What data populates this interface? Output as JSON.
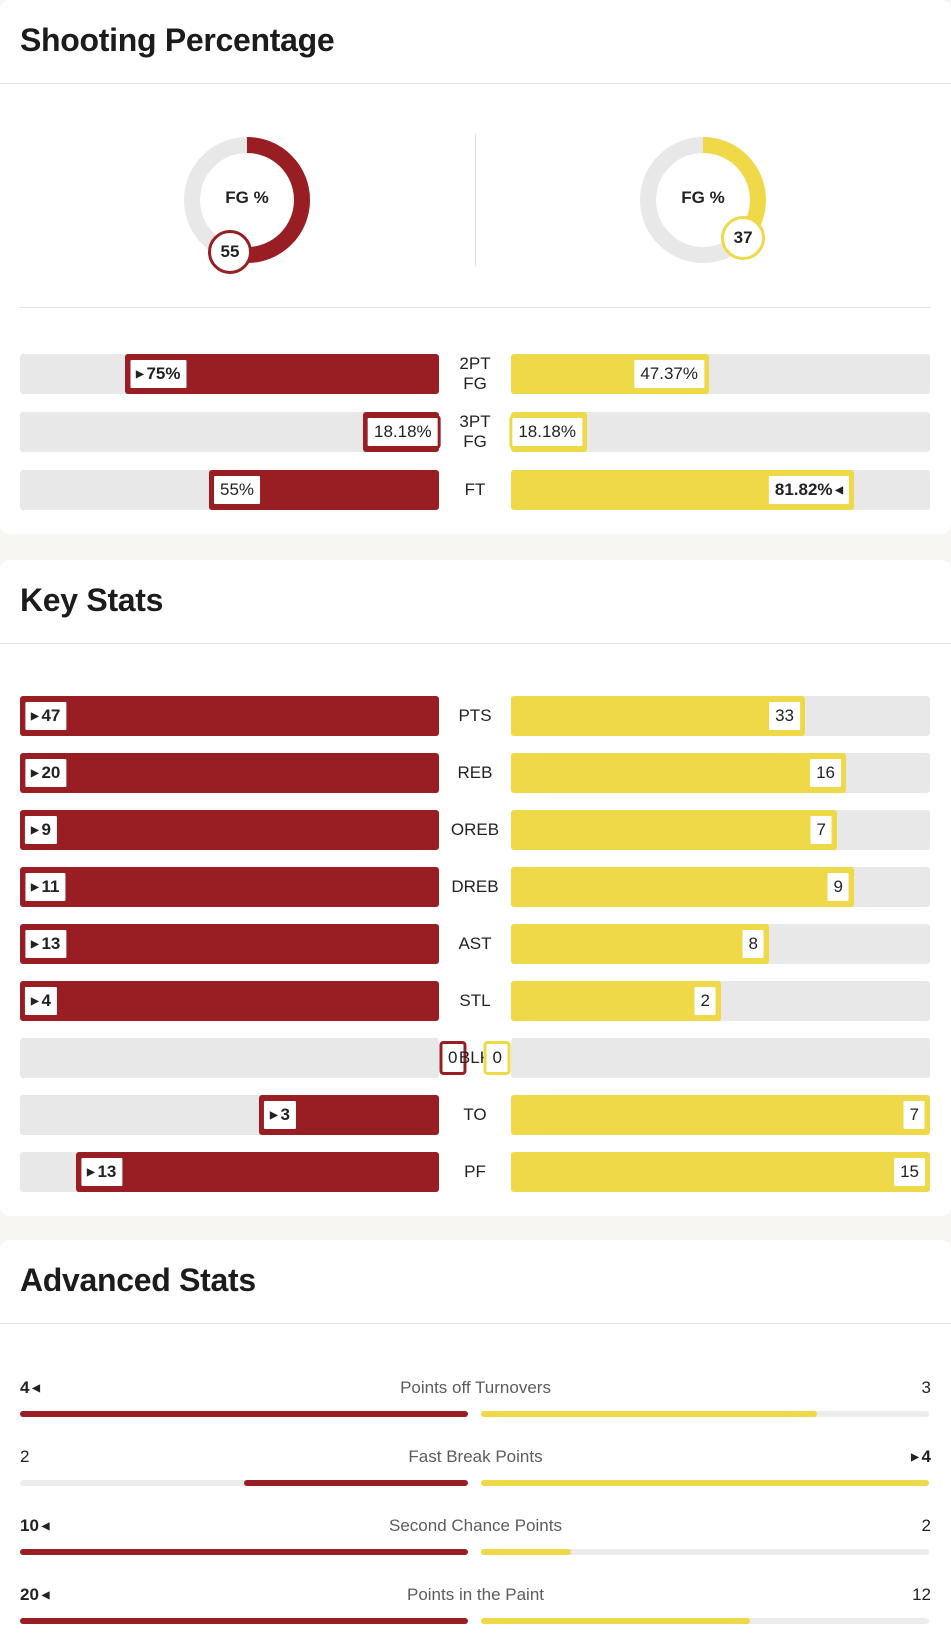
{
  "colors": {
    "team_a": "#991e24",
    "team_b": "#efd948",
    "track": "#e8e8e8"
  },
  "shooting": {
    "title": "Shooting Percentage",
    "team_a": {
      "label": "FG %",
      "value": 55
    },
    "team_b": {
      "label": "FG %",
      "value": 37
    },
    "rows": [
      {
        "label_lines": [
          "2PT",
          "FG"
        ],
        "left": "75%",
        "right": "47.37%",
        "left_frac": 0.75,
        "right_frac": 0.4737,
        "leader": "left"
      },
      {
        "label_lines": [
          "3PT",
          "FG"
        ],
        "left": "18.18%",
        "right": "18.18%",
        "left_frac": 0.1818,
        "right_frac": 0.1818,
        "leader": "none"
      },
      {
        "label_lines": [
          "FT"
        ],
        "left": "55%",
        "right": "81.82%",
        "left_frac": 0.55,
        "right_frac": 0.8182,
        "leader": "right"
      }
    ]
  },
  "key_stats": {
    "title": "Key Stats",
    "rows": [
      {
        "label": "PTS",
        "left": "47",
        "right": "33",
        "left_frac": 1.0,
        "right_frac": 0.702,
        "leader": "left"
      },
      {
        "label": "REB",
        "left": "20",
        "right": "16",
        "left_frac": 1.0,
        "right_frac": 0.8,
        "leader": "left"
      },
      {
        "label": "OREB",
        "left": "9",
        "right": "7",
        "left_frac": 1.0,
        "right_frac": 0.778,
        "leader": "left"
      },
      {
        "label": "DREB",
        "left": "11",
        "right": "9",
        "left_frac": 1.0,
        "right_frac": 0.818,
        "leader": "left"
      },
      {
        "label": "AST",
        "left": "13",
        "right": "8",
        "left_frac": 1.0,
        "right_frac": 0.615,
        "leader": "left"
      },
      {
        "label": "STL",
        "left": "4",
        "right": "2",
        "left_frac": 1.0,
        "right_frac": 0.5,
        "leader": "left"
      },
      {
        "label": "BLK",
        "left": "0",
        "right": "0",
        "left_frac": 0,
        "right_frac": 0,
        "leader": "none"
      },
      {
        "label": "TO",
        "left": "3",
        "right": "7",
        "left_frac": 0.429,
        "right_frac": 1.0,
        "leader": "left"
      },
      {
        "label": "PF",
        "left": "13",
        "right": "15",
        "left_frac": 0.867,
        "right_frac": 1.0,
        "leader": "left"
      }
    ]
  },
  "advanced": {
    "title": "Advanced Stats",
    "rows": [
      {
        "label": "Points off Turnovers",
        "left": "4",
        "right": "3",
        "left_frac": 1.0,
        "right_frac": 0.75,
        "leader": "left"
      },
      {
        "label": "Fast Break Points",
        "left": "2",
        "right": "4",
        "left_frac": 0.5,
        "right_frac": 1.0,
        "leader": "right"
      },
      {
        "label": "Second Chance Points",
        "left": "10",
        "right": "2",
        "left_frac": 1.0,
        "right_frac": 0.2,
        "leader": "left"
      },
      {
        "label": "Points in the Paint",
        "left": "20",
        "right": "12",
        "left_frac": 1.0,
        "right_frac": 0.6,
        "leader": "left"
      }
    ]
  }
}
